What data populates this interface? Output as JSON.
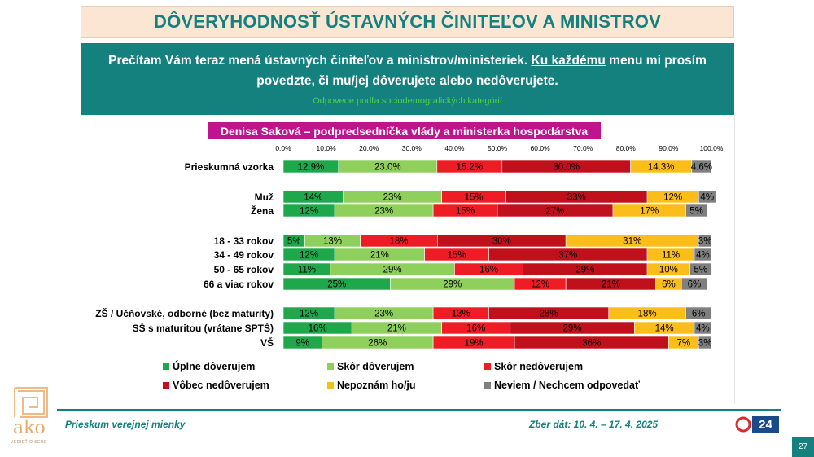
{
  "title": "DÔVERYHODNOSŤ ÚSTAVNÝCH ČINITEĽOV A MINISTROV",
  "question": {
    "part1": "Prečítam Vám teraz mená ústavných činiteľov a ministrov/ministeriek.",
    "underlined": "Ku každému",
    "part2": "menu mi prosím povedzte, či mu/jej dôverujete alebo nedôverujete.",
    "note": "Odpovede podľa sociodemografických kategórií"
  },
  "footer": {
    "survey": "Prieskum verejnej mienky",
    "dates": "Zber dát: 10. 4. – 17. 4. 2025",
    "logo_text": "ako",
    "logo_tag": "VEDIEŤ O SEBE",
    "tv_logo": "24",
    "page": "27"
  },
  "colors": {
    "teal": "#14817f",
    "magenta": "#c0148f"
  },
  "chart_data": {
    "type": "bar",
    "orientation": "horizontal",
    "stacked": true,
    "title": "Denisa Saková – podpredsedníčka vlády a ministerka hospodárstva",
    "xlim": [
      0,
      100
    ],
    "ticks": [
      "0.0%",
      "10.0%",
      "20.0%",
      "30.0%",
      "40.0%",
      "50.0%",
      "60.0%",
      "70.0%",
      "80.0%",
      "90.0%",
      "100.0%"
    ],
    "legend_position": "bottom",
    "series": [
      {
        "name": "Úplne dôverujem",
        "color": "#1fa84b"
      },
      {
        "name": "Skôr dôverujem",
        "color": "#8fd05d"
      },
      {
        "name": "Skôr nedôverujem",
        "color": "#ee1c24"
      },
      {
        "name": "Vôbec nedôverujem",
        "color": "#c0101c"
      },
      {
        "name": "Nepoznám ho/ju",
        "color": "#fbbd1a"
      },
      {
        "name": "Neviem / Nechcem odpovedať",
        "color": "#7f7f7f"
      }
    ],
    "categories": [
      {
        "label": "Prieskumná vzorka",
        "values": [
          12.9,
          23.0,
          15.2,
          30.0,
          14.3,
          4.6
        ],
        "labels": [
          "12.9%",
          "23.0%",
          "15.2%",
          "30.0%",
          "14.3%",
          "4.6%"
        ]
      },
      {
        "label": "Muž",
        "values": [
          14,
          23,
          15,
          33,
          12,
          4
        ],
        "labels": [
          "14%",
          "23%",
          "15%",
          "33%",
          "12%",
          "4%"
        ]
      },
      {
        "label": "Žena",
        "values": [
          12,
          23,
          15,
          27,
          17,
          5
        ],
        "labels": [
          "12%",
          "23%",
          "15%",
          "27%",
          "17%",
          "5%"
        ]
      },
      {
        "label": "18 - 33 rokov",
        "values": [
          5,
          13,
          18,
          30,
          31,
          3
        ],
        "labels": [
          "5%",
          "13%",
          "18%",
          "30%",
          "31%",
          "3%"
        ]
      },
      {
        "label": "34 - 49 rokov",
        "values": [
          12,
          21,
          15,
          37,
          11,
          4
        ],
        "labels": [
          "12%",
          "21%",
          "15%",
          "37%",
          "11%",
          "4%"
        ]
      },
      {
        "label": "50 - 65 rokov",
        "values": [
          11,
          29,
          16,
          29,
          10,
          5
        ],
        "labels": [
          "11%",
          "29%",
          "16%",
          "29%",
          "10%",
          "5%"
        ]
      },
      {
        "label": "66 a viac rokov",
        "values": [
          25,
          29,
          12,
          21,
          6,
          6
        ],
        "labels": [
          "25%",
          "29%",
          "12%",
          "21%",
          "6%",
          "6%"
        ]
      },
      {
        "label": "ZŠ / Učňovské, odborné (bez maturity)",
        "values": [
          12,
          23,
          13,
          28,
          18,
          6
        ],
        "labels": [
          "12%",
          "23%",
          "13%",
          "28%",
          "18%",
          "6%"
        ]
      },
      {
        "label": "SŠ s maturitou (vrátane SPTŠ)",
        "values": [
          16,
          21,
          16,
          29,
          14,
          4
        ],
        "labels": [
          "16%",
          "21%",
          "16%",
          "29%",
          "14%",
          "4%"
        ]
      },
      {
        "label": "VŠ",
        "values": [
          9,
          26,
          19,
          36,
          7,
          3
        ],
        "labels": [
          "9%",
          "26%",
          "19%",
          "36%",
          "7%",
          "3%"
        ]
      }
    ]
  }
}
